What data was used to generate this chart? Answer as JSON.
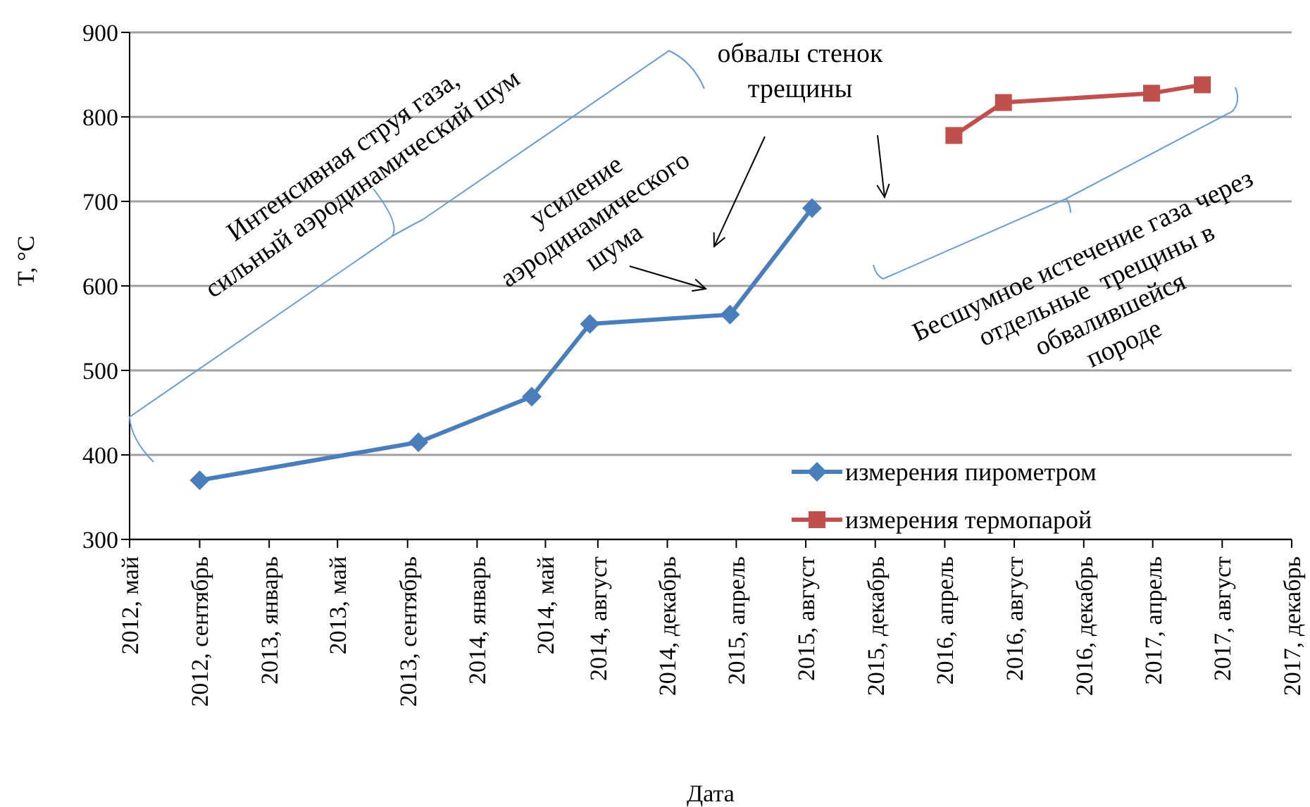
{
  "chart_data": {
    "type": "line",
    "xlabel": "Дата",
    "ylabel": "T, °C",
    "xlim": [
      "2012-05-01",
      "2017-12-01"
    ],
    "xticks": [
      {
        "value": "2012-05-01",
        "label": "2012, май"
      },
      {
        "value": "2012-09-01",
        "label": "2012, сентябрь"
      },
      {
        "value": "2013-01-01",
        "label": "2013, январь"
      },
      {
        "value": "2013-05-01",
        "label": "2013, май"
      },
      {
        "value": "2013-09-01",
        "label": "2013, сентябрь"
      },
      {
        "value": "2014-01-01",
        "label": "2014, январь"
      },
      {
        "value": "2014-05-01",
        "label": "2014, май"
      },
      {
        "value": "2014-08-01",
        "label": "2014, август"
      },
      {
        "value": "2014-12-01",
        "label": "2014, декабрь"
      },
      {
        "value": "2015-04-01",
        "label": "2015, апрель"
      },
      {
        "value": "2015-08-01",
        "label": "2015, август"
      },
      {
        "value": "2015-12-01",
        "label": "2015, декабрь"
      },
      {
        "value": "2016-04-01",
        "label": "2016, апрель"
      },
      {
        "value": "2016-08-01",
        "label": "2016, август"
      },
      {
        "value": "2016-12-01",
        "label": "2016, декабрь"
      },
      {
        "value": "2017-04-01",
        "label": "2017, апрель"
      },
      {
        "value": "2017-08-01",
        "label": "2017, август"
      },
      {
        "value": "2017-12-01",
        "label": "2017, декабрь"
      }
    ],
    "ylim": [
      300,
      900
    ],
    "yticks": [
      300,
      400,
      500,
      600,
      700,
      800,
      900
    ],
    "grid": "y",
    "legend": "bottom right",
    "series": [
      {
        "name": "измерения пирометром",
        "color": "#4a7ebb",
        "marker": "diamond",
        "x": [
          "2012-09-01",
          "2013-09-20",
          "2014-04-07",
          "2014-07-18",
          "2015-03-21",
          "2015-08-12"
        ],
        "values": [
          370,
          415,
          469,
          555,
          566,
          692
        ]
      },
      {
        "name": "измерения термопарой",
        "color": "#c0504d",
        "marker": "square",
        "x": [
          "2016-04-17",
          "2016-07-13",
          "2017-03-30",
          "2017-06-27"
        ],
        "values": [
          778,
          817,
          828,
          838
        ]
      }
    ],
    "annotations": [
      "Интенсивная струя газа, сильный аэродинамический шум",
      "усиление аэродинамического шума",
      "обвалы стенок трещины",
      "Бесшумное истечение газа через отдельные  трещины в обвалившейся породе"
    ]
  }
}
